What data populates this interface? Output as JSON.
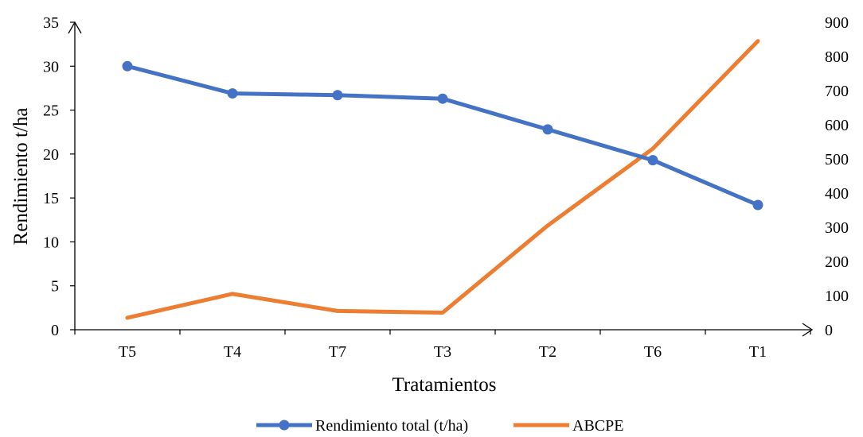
{
  "chart_data": {
    "type": "line",
    "categories": [
      "T5",
      "T4",
      "T7",
      "T3",
      "T2",
      "T6",
      "T1"
    ],
    "xlabel": "Tratamientos",
    "ylabel": "Rendimiento t/ha",
    "ylim": [
      0,
      35
    ],
    "yticks": [
      "0",
      "5",
      "10",
      "15",
      "20",
      "25",
      "30",
      "35"
    ],
    "y2lim": [
      0,
      900
    ],
    "y2ticks": [
      "0",
      "100",
      "200",
      "300",
      "400",
      "500",
      "600",
      "700",
      "800",
      "900"
    ],
    "legend_position": "bottom",
    "series": [
      {
        "name": "Rendimiento total (t/ha)",
        "axis": "left",
        "color": "#4472C4",
        "marker": "circle",
        "values": [
          30.0,
          26.9,
          26.7,
          26.3,
          22.8,
          19.3,
          14.2
        ]
      },
      {
        "name": "ABCPE",
        "axis": "right",
        "color": "#ED7D31",
        "marker": "none",
        "values": [
          35,
          105,
          55,
          50,
          305,
          530,
          845
        ]
      }
    ]
  }
}
